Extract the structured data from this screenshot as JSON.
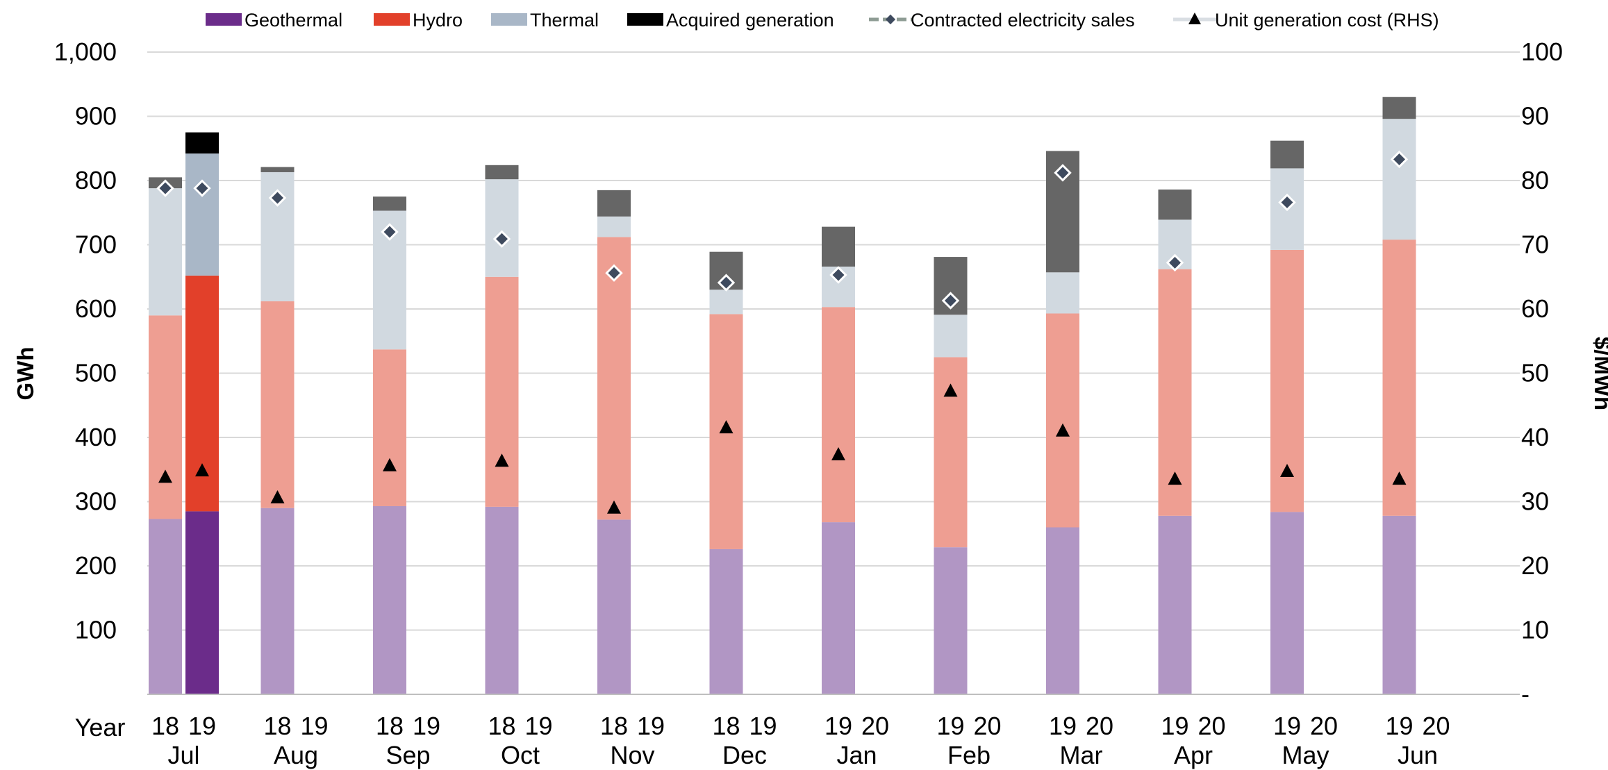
{
  "chart_data": {
    "type": "bar",
    "stacked": true,
    "title": "",
    "ylabel_left": "GWh",
    "ylabel_right": "$/MWh",
    "ylim_left": [
      0,
      1000
    ],
    "ylim_right": [
      0,
      100
    ],
    "yticks_left": [
      "1,000",
      "900",
      "800",
      "700",
      "600",
      "500",
      "400",
      "300",
      "200",
      "100"
    ],
    "yticks_right": [
      "100",
      "90",
      "80",
      "70",
      "60",
      "50",
      "40",
      "30",
      "20",
      "10",
      "-"
    ],
    "grid": true,
    "legend_position": "top",
    "xaxis_row_label": "Year",
    "colors": {
      "geothermal": "#6B2C8A",
      "geothermal_prior": "#B196C4",
      "hydro": "#E2402A",
      "hydro_prior": "#EE9E92",
      "thermal": "#A9B7C7",
      "thermal_prior": "#D1D9E0",
      "acquired": "#000000",
      "acquired_prior": "#666666",
      "contracted_marker": "#3E4A5E",
      "legend_line": "#8E9C94",
      "legend_line_light": "#D9DEE3",
      "cost_marker": "#000000",
      "grid": "#D9D9D9",
      "axis": "#BFBFBF"
    },
    "legend": [
      {
        "key": "geothermal",
        "label": "Geothermal"
      },
      {
        "key": "hydro",
        "label": "Hydro"
      },
      {
        "key": "thermal",
        "label": "Thermal"
      },
      {
        "key": "acquired",
        "label": "Acquired generation"
      },
      {
        "key": "contracted",
        "label": "Contracted electricity sales"
      },
      {
        "key": "cost",
        "label": "Unit generation cost (RHS)"
      }
    ],
    "months": [
      {
        "month": "Jul",
        "years": [
          "18",
          "19"
        ],
        "bars": [
          {
            "year": "18",
            "current": false,
            "geothermal": 273,
            "hydro": 317,
            "thermal": 198,
            "acquired": 17,
            "contracted": 788,
            "cost": 33.8
          },
          {
            "year": "19",
            "current": true,
            "geothermal": 285,
            "hydro": 367,
            "thermal": 190,
            "acquired": 33,
            "contracted": 788,
            "cost": 34.8
          }
        ]
      },
      {
        "month": "Aug",
        "years": [
          "18",
          "19"
        ],
        "bars": [
          {
            "year": "18",
            "current": false,
            "geothermal": 290,
            "hydro": 322,
            "thermal": 201,
            "acquired": 8,
            "contracted": 773,
            "cost": 30.6
          }
        ]
      },
      {
        "month": "Sep",
        "years": [
          "18",
          "19"
        ],
        "bars": [
          {
            "year": "18",
            "current": false,
            "geothermal": 293,
            "hydro": 244,
            "thermal": 216,
            "acquired": 22,
            "contracted": 720,
            "cost": 35.6
          }
        ]
      },
      {
        "month": "Oct",
        "years": [
          "18",
          "19"
        ],
        "bars": [
          {
            "year": "18",
            "current": false,
            "geothermal": 292,
            "hydro": 358,
            "thermal": 152,
            "acquired": 22,
            "contracted": 709,
            "cost": 36.3
          }
        ]
      },
      {
        "month": "Nov",
        "years": [
          "18",
          "19"
        ],
        "bars": [
          {
            "year": "18",
            "current": false,
            "geothermal": 272,
            "hydro": 440,
            "thermal": 32,
            "acquired": 41,
            "contracted": 656,
            "cost": 29.0
          }
        ]
      },
      {
        "month": "Dec",
        "years": [
          "18",
          "19"
        ],
        "bars": [
          {
            "year": "18",
            "current": false,
            "geothermal": 226,
            "hydro": 366,
            "thermal": 38,
            "acquired": 59,
            "contracted": 641,
            "cost": 41.5
          }
        ]
      },
      {
        "month": "Jan",
        "years": [
          "19",
          "20"
        ],
        "bars": [
          {
            "year": "19",
            "current": false,
            "geothermal": 268,
            "hydro": 335,
            "thermal": 63,
            "acquired": 62,
            "contracted": 653,
            "cost": 37.3
          }
        ]
      },
      {
        "month": "Feb",
        "years": [
          "19",
          "20"
        ],
        "bars": [
          {
            "year": "19",
            "current": false,
            "geothermal": 229,
            "hydro": 296,
            "thermal": 66,
            "acquired": 90,
            "contracted": 613,
            "cost": 47.2
          }
        ]
      },
      {
        "month": "Mar",
        "years": [
          "19",
          "20"
        ],
        "bars": [
          {
            "year": "19",
            "current": false,
            "geothermal": 260,
            "hydro": 333,
            "thermal": 64,
            "acquired": 189,
            "contracted": 812,
            "cost": 41.0
          }
        ]
      },
      {
        "month": "Apr",
        "years": [
          "19",
          "20"
        ],
        "bars": [
          {
            "year": "19",
            "current": false,
            "geothermal": 278,
            "hydro": 384,
            "thermal": 77,
            "acquired": 47,
            "contracted": 672,
            "cost": 33.5
          }
        ]
      },
      {
        "month": "May",
        "years": [
          "19",
          "20"
        ],
        "bars": [
          {
            "year": "19",
            "current": false,
            "geothermal": 284,
            "hydro": 408,
            "thermal": 127,
            "acquired": 43,
            "contracted": 766,
            "cost": 34.7
          }
        ]
      },
      {
        "month": "Jun",
        "years": [
          "19",
          "20"
        ],
        "bars": [
          {
            "year": "19",
            "current": false,
            "geothermal": 278,
            "hydro": 430,
            "thermal": 188,
            "acquired": 34,
            "contracted": 833,
            "cost": 33.5
          }
        ]
      }
    ]
  }
}
